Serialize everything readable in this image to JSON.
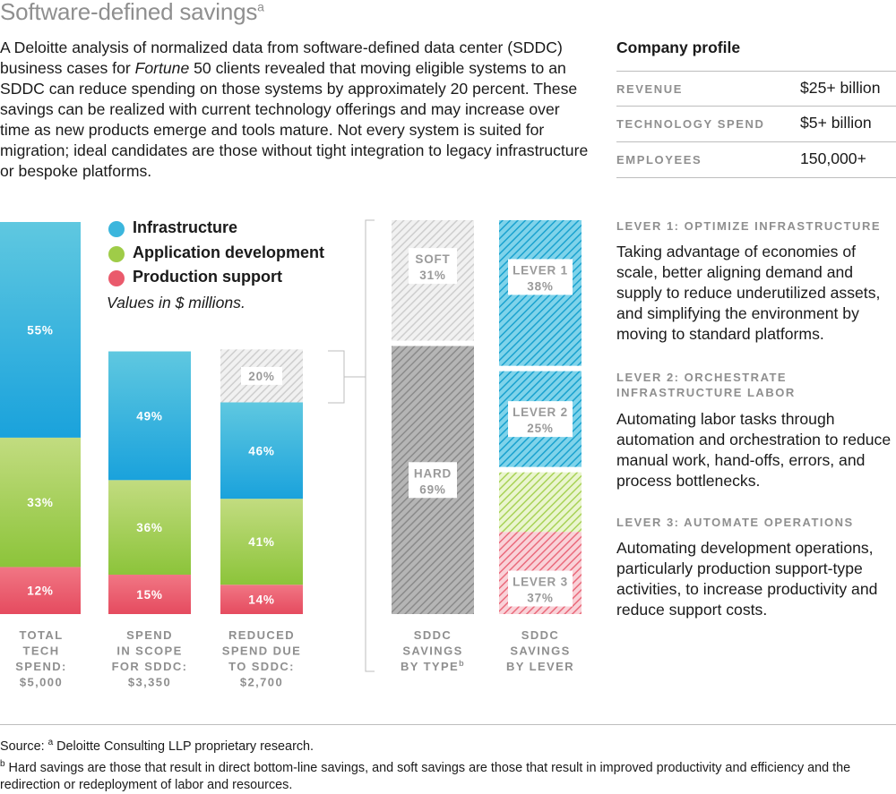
{
  "title": "Software-defined savings",
  "title_note": "a",
  "intro": {
    "before_italic": "A Deloitte analysis of normalized data from software-defined data center (SDDC) business cases for ",
    "italic": "Fortune",
    "after_italic": " 50 clients revealed that moving eligible systems to an SDDC can reduce spending on those systems by approximately 20 percent. These savings can be realized with current technology offerings and may increase over time as new products emerge and tools mature. Not every system is suited for migration; ideal candidates are those without tight integration to legacy infrastructure or bespoke platforms."
  },
  "company_profile": {
    "heading": "Company profile",
    "rows": [
      {
        "label": "Revenue",
        "value": "$25+ billion"
      },
      {
        "label": "Technology spend",
        "value": "$5+ billion"
      },
      {
        "label": "Employees",
        "value": "150,000+"
      }
    ]
  },
  "levers": [
    {
      "title_line1": "Lever 1: Optimize infrastructure",
      "title_line2": "",
      "description": "Taking advantage of economies of scale, better aligning demand and supply to reduce underutilized assets, and simplifying the environment by moving to standard platforms."
    },
    {
      "title_line1": "Lever 2: Orchestrate",
      "title_line2": "infrastructure labor",
      "description": "Automating labor tasks through automation and orchestration to reduce manual work, hand-offs, errors, and process bottlenecks."
    },
    {
      "title_line1": "Lever 3: Automate operations",
      "title_line2": "",
      "description": "Automating development operations, particularly production support-type activities, to increase productivity and reduce support costs."
    }
  ],
  "legend": {
    "items": [
      {
        "name": "Infrastructure",
        "color": "#3bb6dd"
      },
      {
        "name": "Application development",
        "color": "#9fcc48"
      },
      {
        "name": "Production support",
        "color": "#ea5a6c"
      }
    ],
    "note": "Values in $ millions."
  },
  "chart_data": {
    "type": "bar",
    "stacked": true,
    "unit": "$ millions",
    "bars": [
      {
        "label_lines": [
          "TOTAL",
          "TECH",
          "SPEND:",
          "$5,000"
        ],
        "total": 5000,
        "segments": [
          {
            "series": "Production support",
            "percent": 12
          },
          {
            "series": "Application development",
            "percent": 33
          },
          {
            "series": "Infrastructure",
            "percent": 55
          }
        ]
      },
      {
        "label_lines": [
          "SPEND",
          "IN SCOPE",
          "FOR SDDC:",
          "$3,350"
        ],
        "total": 3350,
        "segments": [
          {
            "series": "Production support",
            "percent": 15
          },
          {
            "series": "Application development",
            "percent": 36
          },
          {
            "series": "Infrastructure",
            "percent": 49
          }
        ]
      },
      {
        "label_lines": [
          "REDUCED",
          "SPEND DUE",
          "TO SDDC:",
          "$2,700"
        ],
        "total": 2700,
        "segments": [
          {
            "series": "Production support",
            "percent": 14
          },
          {
            "series": "Application development",
            "percent": 41
          },
          {
            "series": "Infrastructure",
            "percent": 46
          }
        ],
        "savings_percent": 20
      },
      {
        "label_lines": [
          "SDDC",
          "SAVINGS",
          "BY TYPE"
        ],
        "label_note": "b",
        "segments": [
          {
            "name": "HARD",
            "percent": 69
          },
          {
            "name": "SOFT",
            "percent": 31
          }
        ]
      },
      {
        "label_lines": [
          "SDDC",
          "SAVINGS",
          "BY LEVER"
        ],
        "segments": [
          {
            "name": "LEVER 3",
            "percent": 37
          },
          {
            "name": "LEVER 2",
            "percent": 25
          },
          {
            "name": "LEVER 1",
            "percent": 38
          }
        ]
      }
    ]
  },
  "footer": {
    "source_prefix": "Source: ",
    "source_note": "a",
    "source_text": " Deloitte Consulting LLP proprietary research.",
    "footnote_note": "b",
    "footnote_text": " Hard savings are those that result in direct bottom-line savings, and soft savings are those that result in improved productivity and efficiency and the redirection or redeployment of labor and resources."
  }
}
